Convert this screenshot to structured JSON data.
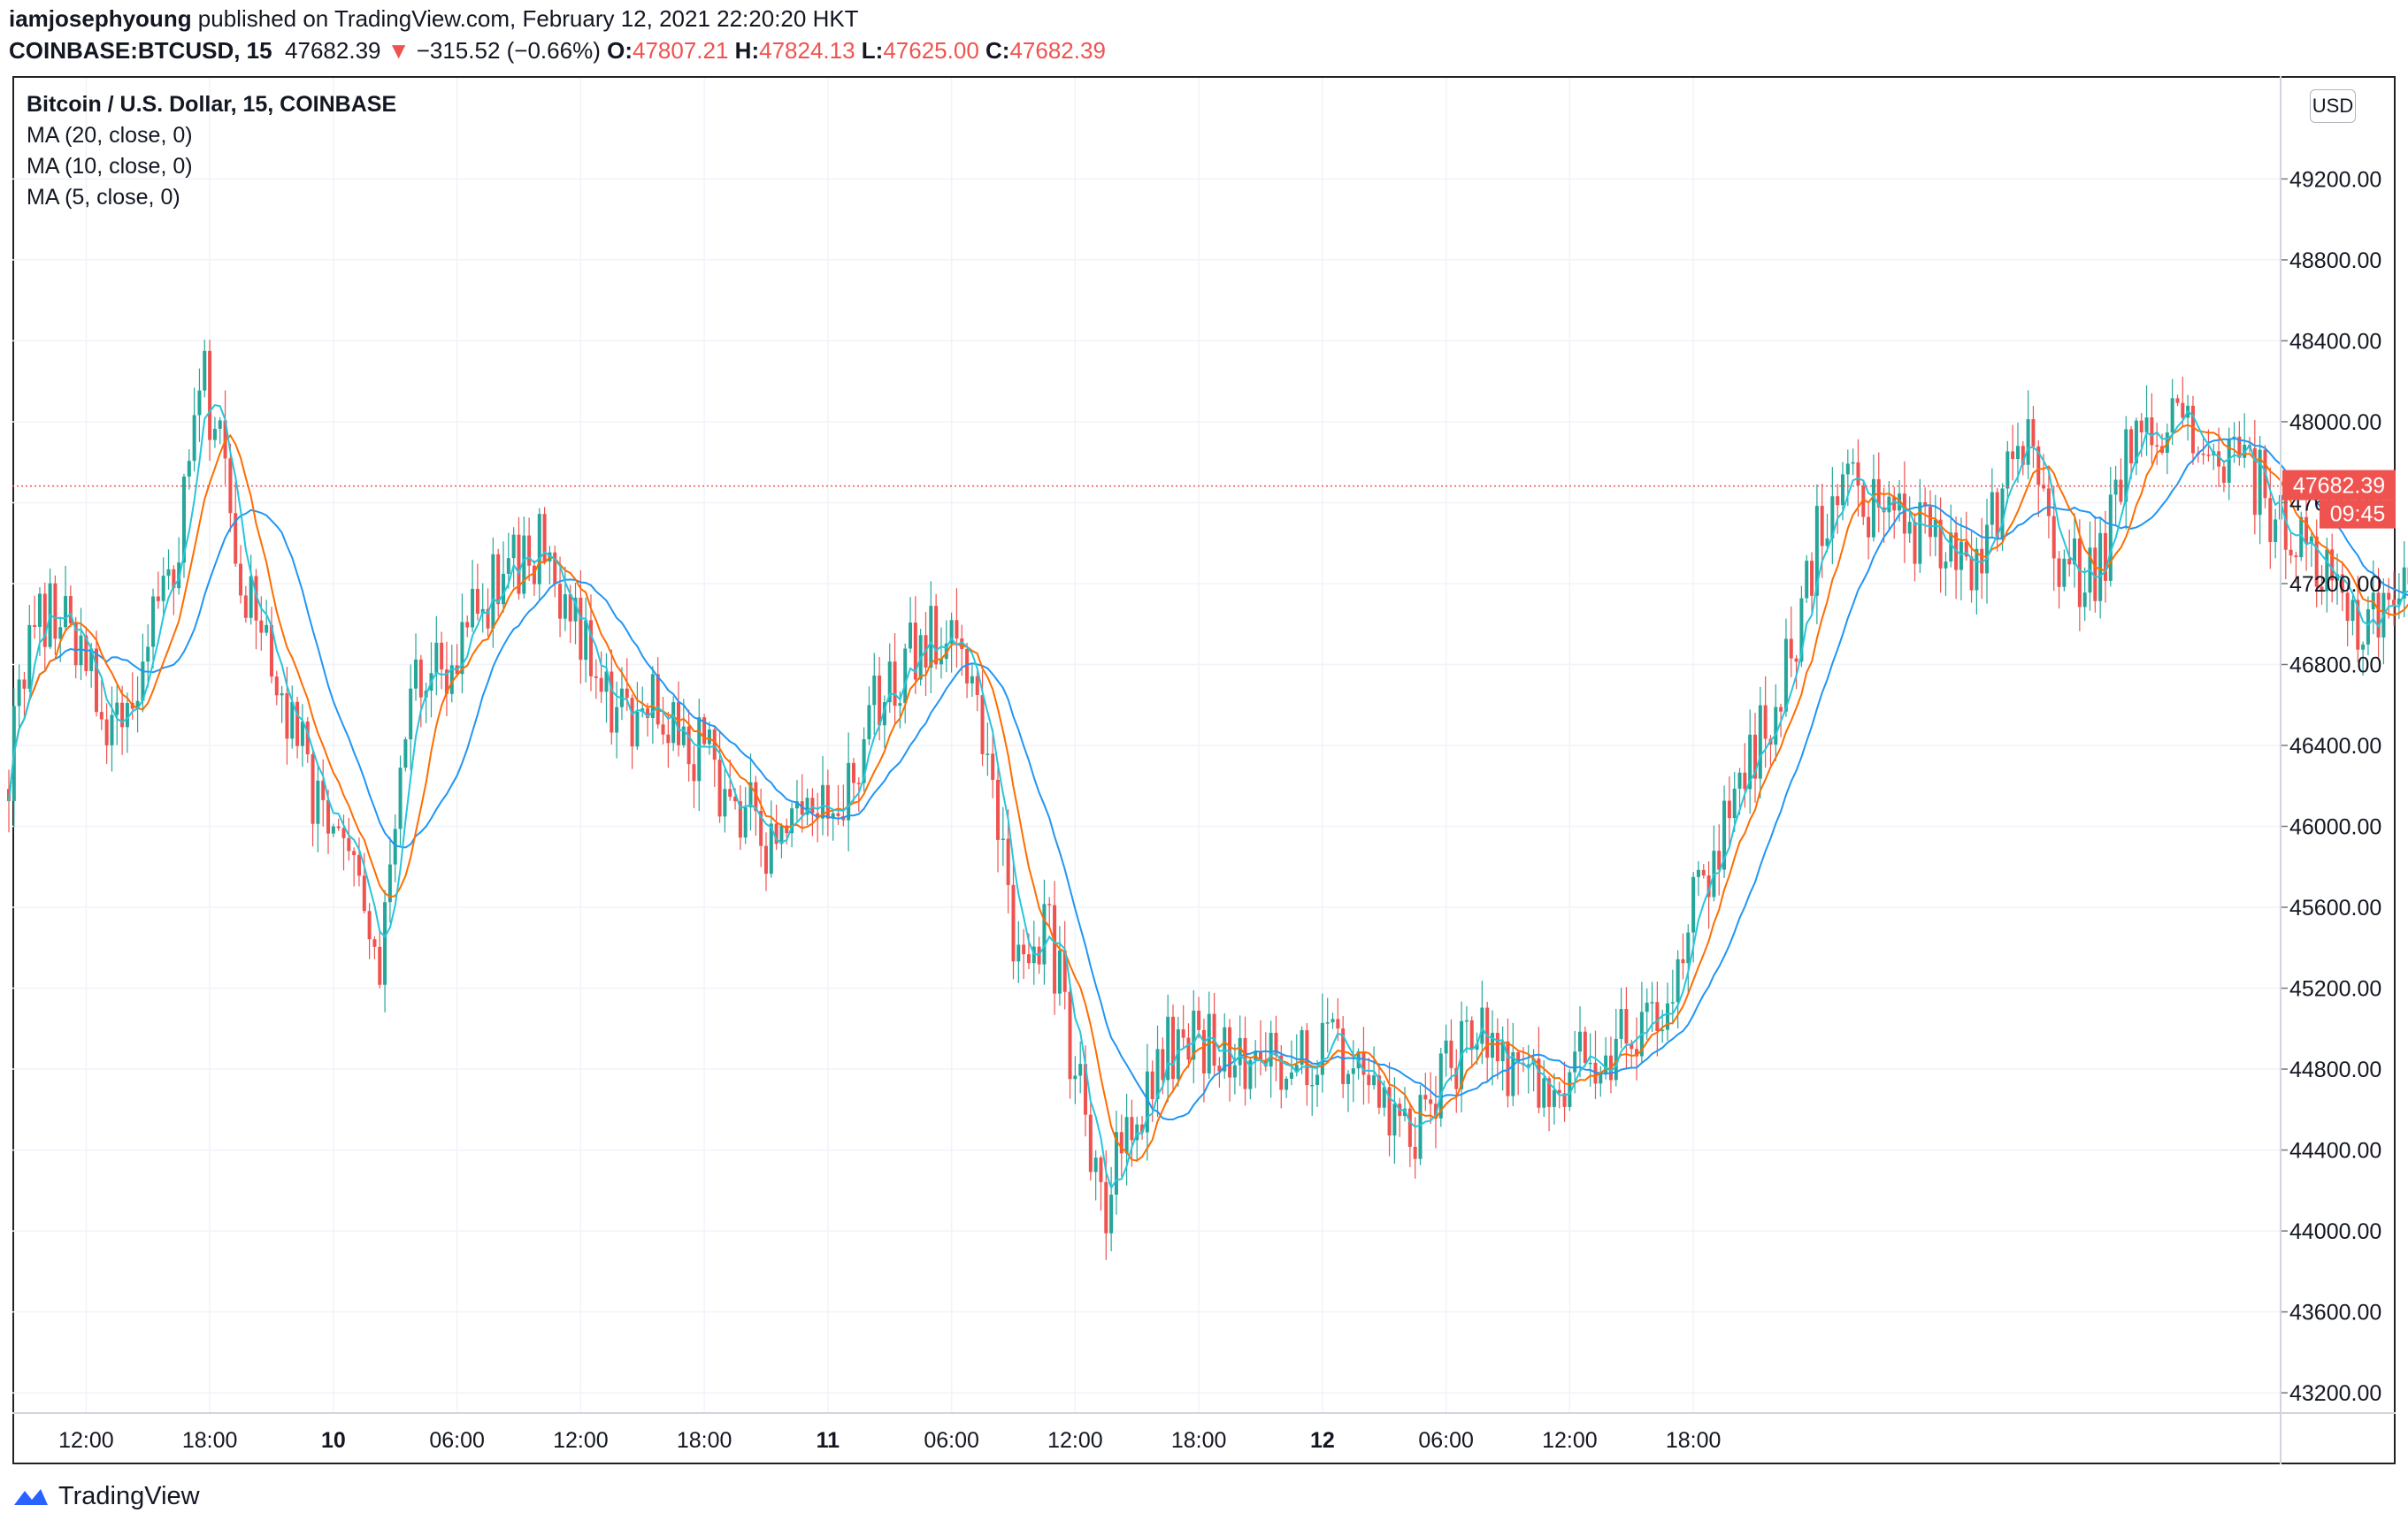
{
  "header": {
    "author": "iamjosephyoung",
    "published_text": " published on TradingView.com, February 12, 2021 22:20:20 HKT",
    "symbol": "COINBASE:BTCUSD, 15",
    "last": "47682.39",
    "change_arrow": "▼",
    "change": "−315.52 (−0.66%)",
    "o_label": "O:",
    "o_value": "47807.21",
    "h_label": "H:",
    "h_value": "47824.13",
    "l_label": "L:",
    "l_value": "47625.00",
    "c_label": "C:",
    "c_value": "47682.39"
  },
  "legend": {
    "title": "Bitcoin / U.S. Dollar, 15, COINBASE",
    "ma20": "MA (20, close, 0)",
    "ma10": "MA (10, close, 0)",
    "ma5": "MA (5, close, 0)"
  },
  "currency_badge": "USD",
  "price_label": "47682.39",
  "countdown_label": "09:45",
  "footer": {
    "brand": "TradingView"
  },
  "colors": {
    "up": "#26a69a",
    "down": "#ef5350",
    "ma20": "#2196f3",
    "ma10": "#ff6d00",
    "ma5": "#26c6da",
    "grid": "#f0f3fa",
    "price_line": "#ef5350"
  },
  "chart_data": {
    "type": "candlestick",
    "y_axis_ticks": [
      "49200.00",
      "48800.00",
      "48400.00",
      "48000.00",
      "47600.00",
      "47200.00",
      "46800.00",
      "46400.00",
      "46000.00",
      "45600.00",
      "45200.00",
      "44800.00",
      "44400.00",
      "44000.00",
      "43600.00",
      "43200.00"
    ],
    "x_axis_ticks": [
      {
        "label": "12:00",
        "bold": false
      },
      {
        "label": "18:00",
        "bold": false
      },
      {
        "label": "10",
        "bold": true
      },
      {
        "label": "06:00",
        "bold": false
      },
      {
        "label": "12:00",
        "bold": false
      },
      {
        "label": "18:00",
        "bold": false
      },
      {
        "label": "11",
        "bold": true
      },
      {
        "label": "06:00",
        "bold": false
      },
      {
        "label": "12:00",
        "bold": false
      },
      {
        "label": "18:00",
        "bold": false
      },
      {
        "label": "12",
        "bold": true
      },
      {
        "label": "06:00",
        "bold": false
      },
      {
        "label": "12:00",
        "bold": false
      },
      {
        "label": "18:00",
        "bold": false
      }
    ],
    "ylim": [
      43100,
      49700
    ],
    "x_start": "2021-02-09 08:15",
    "interval_minutes": 15,
    "last_price": 47682.39,
    "key_points": [
      [
        0,
        46300
      ],
      [
        6,
        47100
      ],
      [
        14,
        46900
      ],
      [
        20,
        46400
      ],
      [
        32,
        47300
      ],
      [
        38,
        48200
      ],
      [
        46,
        47200
      ],
      [
        56,
        46400
      ],
      [
        62,
        46000
      ],
      [
        66,
        45800
      ],
      [
        72,
        45200
      ],
      [
        78,
        46800
      ],
      [
        86,
        46800
      ],
      [
        96,
        47300
      ],
      [
        104,
        47400
      ],
      [
        110,
        47000
      ],
      [
        118,
        46500
      ],
      [
        124,
        46600
      ],
      [
        136,
        46300
      ],
      [
        148,
        45900
      ],
      [
        160,
        46100
      ],
      [
        170,
        46700
      ],
      [
        182,
        47000
      ],
      [
        188,
        46600
      ],
      [
        196,
        45300
      ],
      [
        202,
        45500
      ],
      [
        212,
        44100
      ],
      [
        224,
        44900
      ],
      [
        234,
        44900
      ],
      [
        244,
        44800
      ],
      [
        258,
        44900
      ],
      [
        264,
        44600
      ],
      [
        272,
        44500
      ],
      [
        284,
        45000
      ],
      [
        296,
        44700
      ],
      [
        310,
        44900
      ],
      [
        322,
        45200
      ],
      [
        334,
        46100
      ],
      [
        344,
        46700
      ],
      [
        354,
        47700
      ],
      [
        366,
        47500
      ],
      [
        382,
        47300
      ],
      [
        392,
        48000
      ],
      [
        398,
        47200
      ],
      [
        406,
        47300
      ],
      [
        414,
        48100
      ],
      [
        424,
        47900
      ],
      [
        434,
        47800
      ],
      [
        446,
        47300
      ],
      [
        456,
        47000
      ],
      [
        464,
        47200
      ],
      [
        474,
        47400
      ],
      [
        484,
        47200
      ],
      [
        494,
        47700
      ],
      [
        500,
        47682
      ]
    ]
  }
}
